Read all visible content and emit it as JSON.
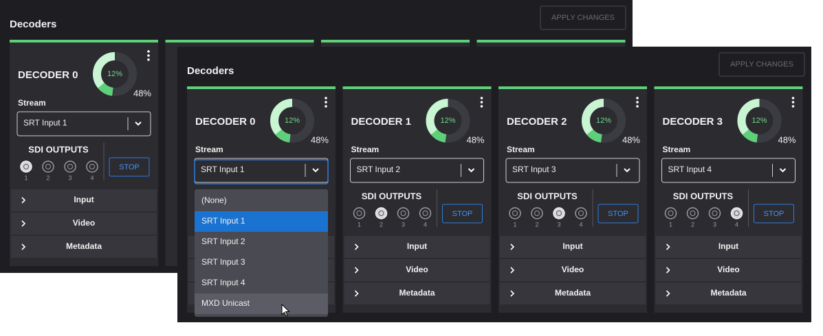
{
  "back_window": {
    "title": "Decoders",
    "apply_button": "APPLY CHANGES",
    "decoders": [
      {
        "name": "DECODER 0",
        "gauge": {
          "inner": {
            "value": 12,
            "label": "12%"
          },
          "outer": {
            "value": 48,
            "label": "48%"
          }
        },
        "stream_label": "Stream",
        "stream": "SRT Input 1",
        "sdi_title": "SDI OUTPUTS",
        "sdi_outputs": [
          1,
          2,
          3,
          4
        ],
        "selected_output": 0,
        "stop_button": "STOP",
        "sections": [
          "Input",
          "Video",
          "Metadata"
        ]
      }
    ]
  },
  "front_window": {
    "title": "Decoders",
    "apply_button": "APPLY CHANGES",
    "decoders": [
      {
        "name": "DECODER 0",
        "gauge": {
          "inner": {
            "value": 12,
            "label": "12%"
          },
          "outer": {
            "value": 48,
            "label": "48%"
          }
        },
        "stream_label": "Stream",
        "stream": "SRT Input 1"
      },
      {
        "name": "DECODER 1",
        "gauge": {
          "inner": {
            "value": 12,
            "label": "12%"
          },
          "outer": {
            "value": 48,
            "label": "48%"
          }
        },
        "stream_label": "Stream",
        "stream": "SRT Input 2",
        "sdi_title": "SDI OUTPUTS",
        "sdi_outputs": [
          1,
          2,
          3,
          4
        ],
        "selected_output": 1,
        "stop_button": "STOP",
        "sections": [
          "Input",
          "Video",
          "Metadata"
        ]
      },
      {
        "name": "DECODER 2",
        "gauge": {
          "inner": {
            "value": 12,
            "label": "12%"
          },
          "outer": {
            "value": 48,
            "label": "48%"
          }
        },
        "stream_label": "Stream",
        "stream": "SRT Input 3",
        "sdi_title": "SDI OUTPUTS",
        "sdi_outputs": [
          1,
          2,
          3,
          4
        ],
        "selected_output": 2,
        "stop_button": "STOP",
        "sections": [
          "Input",
          "Video",
          "Metadata"
        ]
      },
      {
        "name": "DECODER 3",
        "gauge": {
          "inner": {
            "value": 12,
            "label": "12%"
          },
          "outer": {
            "value": 48,
            "label": "48%"
          }
        },
        "stream_label": "Stream",
        "stream": "SRT Input 4",
        "sdi_title": "SDI OUTPUTS",
        "sdi_outputs": [
          1,
          2,
          3,
          4
        ],
        "selected_output": 3,
        "stop_button": "STOP",
        "sections": [
          "Input",
          "Video",
          "Metadata"
        ]
      }
    ],
    "dropdown": {
      "options": [
        "(None)",
        "SRT Input 1",
        "SRT Input 2",
        "SRT Input 3",
        "SRT Input 4",
        "MXD Unicast"
      ],
      "selected": 1,
      "hovered": 5
    }
  }
}
